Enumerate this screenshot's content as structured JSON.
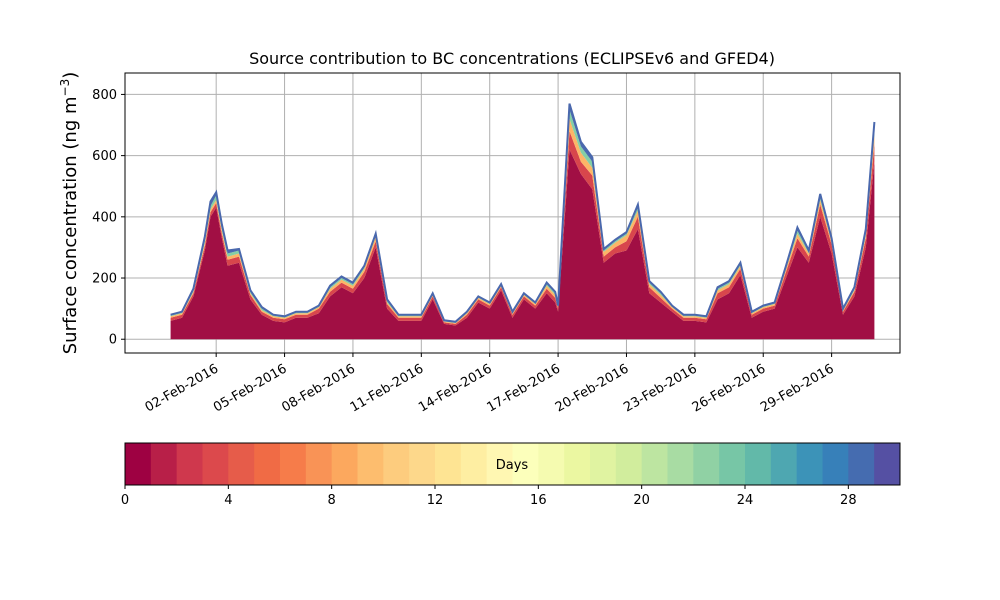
{
  "chart_data": {
    "type": "area",
    "title": "Source contribution to BC concentrations (ECLIPSEv6 and GFED4)",
    "ylabel": "Surface concentration (ng m",
    "ylabel_sup": "−3",
    "ylabel_close": ")",
    "xlabel": "",
    "xlim": [
      "2016-01-29",
      "2016-03-03"
    ],
    "ylim": [
      -45,
      870
    ],
    "grid": true,
    "x_ticks": [
      "02-Feb-2016",
      "05-Feb-2016",
      "08-Feb-2016",
      "11-Feb-2016",
      "14-Feb-2016",
      "17-Feb-2016",
      "20-Feb-2016",
      "23-Feb-2016",
      "26-Feb-2016",
      "29-Feb-2016"
    ],
    "y_ticks": [
      0,
      200,
      400,
      600,
      800
    ],
    "x": [
      "2016-01-31 00:00",
      "2016-01-31 12:00",
      "2016-02-01 00:00",
      "2016-02-01 12:00",
      "2016-02-01 18:00",
      "2016-02-02 00:00",
      "2016-02-02 06:00",
      "2016-02-02 12:00",
      "2016-02-03 00:00",
      "2016-02-03 12:00",
      "2016-02-04 00:00",
      "2016-02-04 12:00",
      "2016-02-05 00:00",
      "2016-02-05 12:00",
      "2016-02-06 00:00",
      "2016-02-06 12:00",
      "2016-02-07 00:00",
      "2016-02-07 12:00",
      "2016-02-08 00:00",
      "2016-02-08 12:00",
      "2016-02-09 00:00",
      "2016-02-09 12:00",
      "2016-02-10 00:00",
      "2016-02-10 12:00",
      "2016-02-11 00:00",
      "2016-02-11 12:00",
      "2016-02-12 00:00",
      "2016-02-12 12:00",
      "2016-02-13 00:00",
      "2016-02-13 12:00",
      "2016-02-14 00:00",
      "2016-02-14 12:00",
      "2016-02-15 00:00",
      "2016-02-15 12:00",
      "2016-02-16 00:00",
      "2016-02-16 12:00",
      "2016-02-16 21:00",
      "2016-02-17 00:00",
      "2016-02-17 12:00",
      "2016-02-18 00:00",
      "2016-02-18 12:00",
      "2016-02-19 00:00",
      "2016-02-19 12:00",
      "2016-02-20 00:00",
      "2016-02-20 12:00",
      "2016-02-21 00:00",
      "2016-02-21 12:00",
      "2016-02-22 00:00",
      "2016-02-22 12:00",
      "2016-02-23 00:00",
      "2016-02-23 12:00",
      "2016-02-24 00:00",
      "2016-02-24 12:00",
      "2016-02-25 00:00",
      "2016-02-25 12:00",
      "2016-02-26 00:00",
      "2016-02-26 12:00",
      "2016-02-27 00:00",
      "2016-02-27 12:00",
      "2016-02-28 00:00",
      "2016-02-28 12:00",
      "2016-02-29 00:00",
      "2016-02-29 12:00",
      "2016-03-01 00:00",
      "2016-03-01 12:00",
      "2016-03-01 21:00"
    ],
    "series": [
      {
        "values": [
          60,
          70,
          140,
          290,
          400,
          430,
          330,
          240,
          250,
          130,
          80,
          60,
          55,
          70,
          70,
          85,
          140,
          170,
          150,
          200,
          300,
          100,
          60,
          60,
          60,
          130,
          50,
          45,
          70,
          120,
          100,
          160,
          70,
          130,
          100,
          150,
          120,
          90,
          620,
          540,
          490,
          250,
          280,
          290,
          360,
          150,
          120,
          90,
          60,
          60,
          55,
          130,
          150,
          210,
          70,
          90,
          100,
          200,
          300,
          250,
          400,
          280,
          80,
          140,
          300,
          580
        ]
      },
      {
        "values": [
          10,
          10,
          10,
          15,
          15,
          15,
          15,
          20,
          20,
          15,
          10,
          10,
          10,
          10,
          10,
          15,
          15,
          15,
          15,
          20,
          20,
          15,
          10,
          10,
          10,
          10,
          5,
          5,
          10,
          10,
          10,
          10,
          10,
          10,
          10,
          15,
          15,
          10,
          60,
          40,
          45,
          20,
          20,
          30,
          40,
          20,
          15,
          10,
          10,
          10,
          10,
          20,
          20,
          20,
          10,
          10,
          10,
          20,
          30,
          20,
          40,
          30,
          10,
          15,
          30,
          60
        ]
      },
      {
        "values": [
          5,
          5,
          5,
          10,
          10,
          10,
          10,
          10,
          10,
          5,
          5,
          5,
          5,
          5,
          5,
          5,
          10,
          10,
          10,
          10,
          15,
          5,
          5,
          5,
          5,
          5,
          3,
          3,
          5,
          5,
          5,
          5,
          5,
          5,
          5,
          10,
          10,
          5,
          40,
          30,
          25,
          15,
          15,
          20,
          20,
          10,
          10,
          5,
          5,
          5,
          5,
          10,
          10,
          10,
          5,
          5,
          5,
          10,
          15,
          10,
          15,
          10,
          5,
          5,
          10,
          30
        ]
      },
      {
        "values": [
          3,
          3,
          5,
          10,
          10,
          15,
          10,
          10,
          10,
          5,
          5,
          3,
          3,
          3,
          3,
          3,
          5,
          5,
          5,
          5,
          5,
          5,
          3,
          3,
          3,
          3,
          2,
          2,
          3,
          3,
          3,
          3,
          3,
          3,
          3,
          5,
          5,
          3,
          30,
          20,
          20,
          5,
          5,
          5,
          10,
          5,
          5,
          3,
          3,
          3,
          3,
          5,
          5,
          5,
          3,
          3,
          3,
          5,
          10,
          5,
          10,
          5,
          3,
          5,
          10,
          20
        ]
      },
      {
        "values": [
          2,
          2,
          5,
          10,
          15,
          10,
          10,
          10,
          5,
          5,
          5,
          2,
          2,
          2,
          2,
          2,
          5,
          5,
          5,
          5,
          5,
          5,
          2,
          2,
          2,
          2,
          2,
          2,
          2,
          2,
          2,
          2,
          2,
          2,
          2,
          5,
          5,
          2,
          20,
          15,
          15,
          5,
          5,
          5,
          10,
          5,
          5,
          2,
          2,
          2,
          2,
          5,
          5,
          5,
          2,
          2,
          2,
          5,
          10,
          5,
          10,
          5,
          2,
          5,
          10,
          20
        ]
      }
    ],
    "series_colors": [
      "#a10f44",
      "#d8464c",
      "#fdb567",
      "#84cfa5",
      "#4a6cb0"
    ],
    "outline_color": "#4a68ad",
    "colorbar": {
      "label": "Days",
      "ticks": [
        0,
        4,
        8,
        12,
        16,
        20,
        24,
        28
      ],
      "range": [
        0,
        30
      ],
      "segments": 30,
      "colors": [
        "#9e0142",
        "#b81f48",
        "#cf384d",
        "#dc494c",
        "#e65c4a",
        "#f06b45",
        "#f67c4a",
        "#f99356",
        "#fca85e",
        "#fdbd6e",
        "#fdcc7e",
        "#fdd88b",
        "#fee493",
        "#feeea2",
        "#fff7b2",
        "#fcffbb",
        "#f5fbb0",
        "#ebf7a1",
        "#e0f3a1",
        "#d1ed9d",
        "#bde5a1",
        "#a8dca3",
        "#90d1a4",
        "#77c6a6",
        "#62b9a9",
        "#4ea7b1",
        "#3c93b8",
        "#3780b9",
        "#456cb0",
        "#5550a3"
      ]
    }
  }
}
